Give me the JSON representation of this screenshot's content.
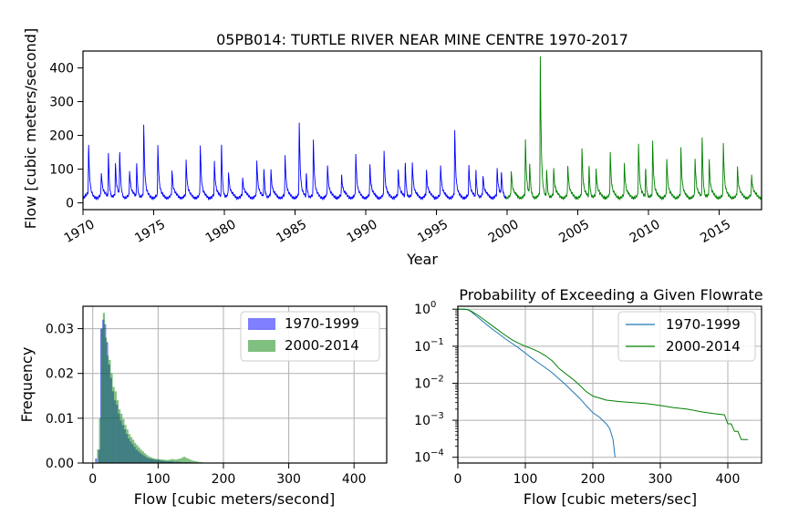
{
  "chart_data": [
    {
      "type": "line",
      "title": "05PB014: TURTLE RIVER NEAR MINE CENTRE 1970-2017",
      "xlabel": "Year",
      "ylabel": "Flow [cubic meters/second]",
      "xlim": [
        1970,
        2018
      ],
      "ylim": [
        -20,
        450
      ],
      "xticks": [
        "1970",
        "1975",
        "1980",
        "1985",
        "1990",
        "1995",
        "2000",
        "2005",
        "2010",
        "2015"
      ],
      "yticks": [
        0,
        100,
        200,
        300,
        400
      ],
      "series": [
        {
          "color": "#0000ff",
          "peaks": [
            [
              1970.4,
              165
            ],
            [
              1971.3,
              90
            ],
            [
              1971.8,
              155
            ],
            [
              1972.3,
              115
            ],
            [
              1972.6,
              150
            ],
            [
              1973.3,
              95
            ],
            [
              1973.8,
              125
            ],
            [
              1974.3,
              230
            ],
            [
              1975.3,
              170
            ],
            [
              1976.3,
              95
            ],
            [
              1977.3,
              125
            ],
            [
              1978.3,
              170
            ],
            [
              1979.3,
              120
            ],
            [
              1979.8,
              180
            ],
            [
              1980.3,
              90
            ],
            [
              1981.3,
              70
            ],
            [
              1982.3,
              125
            ],
            [
              1982.8,
              110
            ],
            [
              1983.3,
              95
            ],
            [
              1984.3,
              140
            ],
            [
              1985.3,
              235
            ],
            [
              1985.8,
              95
            ],
            [
              1986.3,
              185
            ],
            [
              1987.3,
              110
            ],
            [
              1988.3,
              80
            ],
            [
              1989.3,
              145
            ],
            [
              1990.3,
              110
            ],
            [
              1991.3,
              155
            ],
            [
              1992.3,
              95
            ],
            [
              1992.8,
              125
            ],
            [
              1993.3,
              120
            ],
            [
              1994.3,
              95
            ],
            [
              1995.3,
              110
            ],
            [
              1996.3,
              215
            ],
            [
              1997.3,
              110
            ],
            [
              1997.8,
              105
            ],
            [
              1998.3,
              80
            ],
            [
              1999.3,
              100
            ],
            [
              1999.6,
              90
            ]
          ]
        },
        {
          "color": "#008000",
          "peaks": [
            [
              2000.3,
              95
            ],
            [
              2001.3,
              185
            ],
            [
              2001.6,
              115
            ],
            [
              2002.35,
              430
            ],
            [
              2002.8,
              105
            ],
            [
              2003.3,
              100
            ],
            [
              2004.3,
              110
            ],
            [
              2005.3,
              160
            ],
            [
              2005.8,
              115
            ],
            [
              2006.3,
              100
            ],
            [
              2007.3,
              150
            ],
            [
              2008.3,
              115
            ],
            [
              2009.3,
              175
            ],
            [
              2009.8,
              110
            ],
            [
              2010.3,
              180
            ],
            [
              2011.3,
              130
            ],
            [
              2012.3,
              160
            ],
            [
              2013.3,
              130
            ],
            [
              2013.8,
              205
            ],
            [
              2014.3,
              125
            ],
            [
              2015.3,
              175
            ],
            [
              2016.3,
              105
            ],
            [
              2017.3,
              80
            ]
          ]
        }
      ]
    },
    {
      "type": "bar",
      "subtype": "histogram",
      "title": "",
      "xlabel": "Flow [cubic meters/second]",
      "ylabel": "Frequency",
      "xlim": [
        -15,
        450
      ],
      "ylim": [
        0,
        0.035
      ],
      "xticks": [
        0,
        100,
        200,
        300,
        400
      ],
      "yticks": [
        "0.00",
        "0.01",
        "0.02",
        "0.03"
      ],
      "grid": true,
      "legend": "top-right",
      "series": [
        {
          "name": "1970-1999",
          "color": "#0000ff",
          "bins": [
            [
              5,
              0.001
            ],
            [
              10,
              0.003
            ],
            [
              13,
              0.03
            ],
            [
              16,
              0.032
            ],
            [
              19,
              0.031
            ],
            [
              22,
              0.027
            ],
            [
              25,
              0.022
            ],
            [
              28,
              0.019
            ],
            [
              31,
              0.016
            ],
            [
              34,
              0.014
            ],
            [
              37,
              0.013
            ],
            [
              40,
              0.011
            ],
            [
              43,
              0.0095
            ],
            [
              46,
              0.0085
            ],
            [
              49,
              0.0075
            ],
            [
              52,
              0.0065
            ],
            [
              55,
              0.0055
            ],
            [
              58,
              0.0048
            ],
            [
              61,
              0.0042
            ],
            [
              64,
              0.0036
            ],
            [
              67,
              0.003
            ],
            [
              70,
              0.0026
            ],
            [
              73,
              0.0022
            ],
            [
              76,
              0.0019
            ],
            [
              79,
              0.0016
            ],
            [
              82,
              0.0013
            ],
            [
              85,
              0.0011
            ],
            [
              88,
              0.001
            ],
            [
              91,
              0.0009
            ],
            [
              94,
              0.0008
            ],
            [
              97,
              0.0007
            ],
            [
              100,
              0.0007
            ],
            [
              103,
              0.0006
            ],
            [
              106,
              0.0005
            ],
            [
              109,
              0.0005
            ],
            [
              112,
              0.0004
            ],
            [
              115,
              0.0004
            ],
            [
              118,
              0.0004
            ],
            [
              121,
              0.0004
            ],
            [
              124,
              0.0003
            ],
            [
              127,
              0.0003
            ],
            [
              130,
              0.0003
            ],
            [
              133,
              0.0003
            ],
            [
              136,
              0.0002
            ],
            [
              139,
              0.0002
            ],
            [
              142,
              0.0002
            ],
            [
              145,
              0.0002
            ],
            [
              148,
              0.0002
            ],
            [
              151,
              0.0001
            ],
            [
              154,
              0.0001
            ],
            [
              157,
              0.0001
            ],
            [
              160,
              0.0001
            ]
          ]
        },
        {
          "name": "2000-2014",
          "color": "#008000",
          "bins": [
            [
              8,
              0.003
            ],
            [
              11,
              0.01
            ],
            [
              14,
              0.03
            ],
            [
              17,
              0.0335
            ],
            [
              20,
              0.028
            ],
            [
              23,
              0.024
            ],
            [
              26,
              0.023
            ],
            [
              29,
              0.02
            ],
            [
              32,
              0.017
            ],
            [
              35,
              0.016
            ],
            [
              38,
              0.014
            ],
            [
              41,
              0.012
            ],
            [
              44,
              0.011
            ],
            [
              47,
              0.0098
            ],
            [
              50,
              0.0085
            ],
            [
              53,
              0.0075
            ],
            [
              56,
              0.0065
            ],
            [
              59,
              0.0058
            ],
            [
              62,
              0.0052
            ],
            [
              65,
              0.0045
            ],
            [
              68,
              0.004
            ],
            [
              71,
              0.0035
            ],
            [
              74,
              0.003
            ],
            [
              77,
              0.0026
            ],
            [
              80,
              0.0022
            ],
            [
              83,
              0.0018
            ],
            [
              86,
              0.0015
            ],
            [
              89,
              0.0013
            ],
            [
              92,
              0.0011
            ],
            [
              95,
              0.001
            ],
            [
              98,
              0.0009
            ],
            [
              101,
              0.0009
            ],
            [
              104,
              0.0008
            ],
            [
              107,
              0.0008
            ],
            [
              110,
              0.0007
            ],
            [
              113,
              0.0007
            ],
            [
              116,
              0.0007
            ],
            [
              119,
              0.0008
            ],
            [
              122,
              0.0009
            ],
            [
              125,
              0.0008
            ],
            [
              128,
              0.0008
            ],
            [
              131,
              0.0009
            ],
            [
              134,
              0.001
            ],
            [
              137,
              0.0012
            ],
            [
              140,
              0.0014
            ],
            [
              143,
              0.0012
            ],
            [
              146,
              0.001
            ],
            [
              149,
              0.0008
            ],
            [
              152,
              0.0006
            ],
            [
              155,
              0.0005
            ],
            [
              158,
              0.0004
            ],
            [
              161,
              0.0003
            ],
            [
              164,
              0.0002
            ],
            [
              167,
              0.0002
            ],
            [
              170,
              0.0001
            ]
          ]
        }
      ]
    },
    {
      "type": "line",
      "title": "Probability of Exceeding a Given Flowrate",
      "xlabel": "Flow [cubic meters/sec]",
      "ylabel": "",
      "yscale": "log",
      "xlim": [
        0,
        450
      ],
      "ylim": [
        7e-05,
        1.2
      ],
      "xticks": [
        0,
        100,
        200,
        300,
        400
      ],
      "yticks": [
        "10^0",
        "10^-1",
        "10^-2",
        "10^-3",
        "10^-4"
      ],
      "grid": true,
      "legend": "top-right",
      "series": [
        {
          "name": "1970-1999",
          "color": "#1f77b4",
          "x": [
            0,
            10,
            15,
            20,
            30,
            40,
            50,
            60,
            70,
            80,
            90,
            100,
            110,
            120,
            130,
            140,
            150,
            160,
            170,
            180,
            190,
            200,
            210,
            220,
            225,
            230,
            233
          ],
          "y": [
            1.0,
            1.0,
            0.97,
            0.85,
            0.6,
            0.42,
            0.3,
            0.22,
            0.16,
            0.12,
            0.09,
            0.065,
            0.047,
            0.035,
            0.026,
            0.019,
            0.013,
            0.009,
            0.006,
            0.004,
            0.0025,
            0.0016,
            0.0012,
            0.0008,
            0.0006,
            0.0003,
            0.0001
          ]
        },
        {
          "name": "2000-2014",
          "color": "#008000",
          "x": [
            0,
            10,
            15,
            20,
            30,
            40,
            50,
            60,
            70,
            80,
            90,
            100,
            110,
            120,
            130,
            140,
            150,
            160,
            170,
            180,
            190,
            200,
            220,
            240,
            260,
            280,
            300,
            320,
            340,
            360,
            380,
            395,
            400,
            405,
            410,
            415,
            420,
            430
          ],
          "y": [
            1.0,
            1.0,
            0.97,
            0.88,
            0.68,
            0.5,
            0.37,
            0.27,
            0.2,
            0.15,
            0.12,
            0.1,
            0.085,
            0.07,
            0.055,
            0.04,
            0.025,
            0.018,
            0.013,
            0.009,
            0.006,
            0.0045,
            0.0035,
            0.0032,
            0.003,
            0.0028,
            0.0025,
            0.0022,
            0.002,
            0.0017,
            0.0015,
            0.0014,
            0.0008,
            0.0008,
            0.0005,
            0.0005,
            0.0003,
            0.0003
          ]
        }
      ]
    }
  ]
}
